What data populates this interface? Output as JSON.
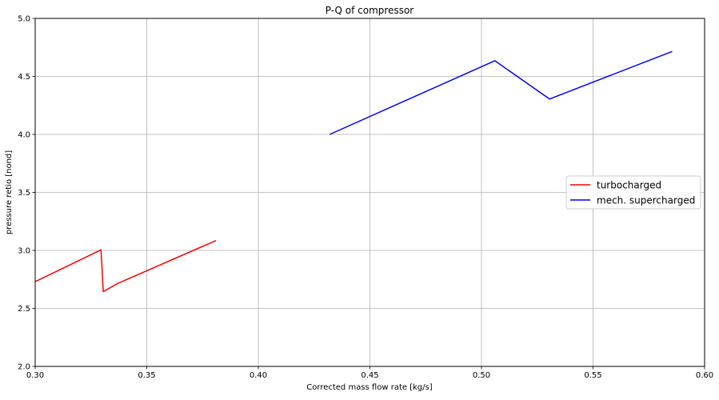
{
  "chart_data": {
    "type": "line",
    "title": "P-Q of compressor",
    "xlabel": "Corrected mass flow rate [kg/s]",
    "ylabel": "pressure retio [nond]",
    "xlim": [
      0.3,
      0.6
    ],
    "ylim": [
      2.0,
      5.0
    ],
    "xticks": [
      0.3,
      0.35,
      0.4,
      0.45,
      0.5,
      0.55,
      0.6
    ],
    "xtick_labels": [
      "0.30",
      "0.35",
      "0.40",
      "0.45",
      "0.50",
      "0.55",
      "0.60"
    ],
    "yticks": [
      2.0,
      2.5,
      3.0,
      3.5,
      4.0,
      4.5,
      5.0
    ],
    "ytick_labels": [
      "2.0",
      "2.5",
      "3.0",
      "3.5",
      "4.0",
      "4.5",
      "5.0"
    ],
    "grid": true,
    "legend_position": "center-right",
    "series": [
      {
        "name": "turbocharged",
        "color": "#ff0000",
        "x": [
          0.3,
          0.3295,
          0.3305,
          0.337,
          0.381
        ],
        "y": [
          2.73,
          3.005,
          2.645,
          2.715,
          3.085
        ]
      },
      {
        "name": "mech. supercharged",
        "color": "#0000ff",
        "x": [
          0.432,
          0.506,
          0.5305,
          0.5855
        ],
        "y": [
          4.0,
          4.635,
          4.305,
          4.715
        ]
      }
    ]
  }
}
